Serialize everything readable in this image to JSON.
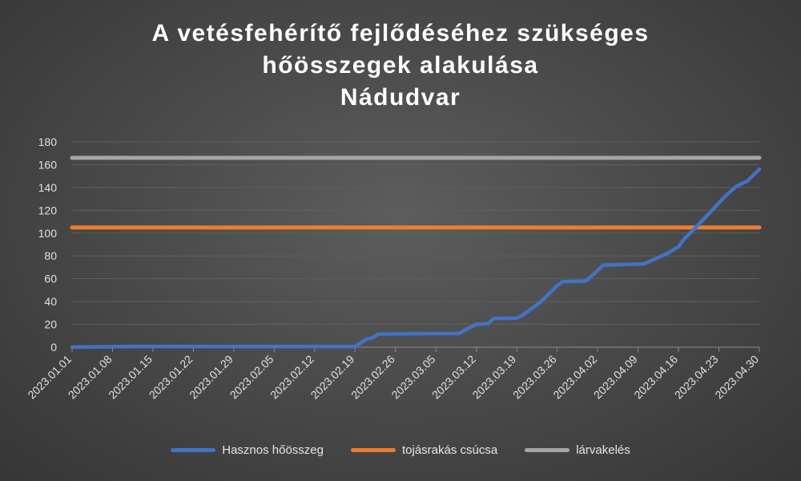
{
  "chart_data": {
    "type": "line",
    "title_lines": [
      "A vetésfehérítő fejlődéséhez szükséges",
      "hőösszegek alakulása",
      "Nádudvar"
    ],
    "xlabel": "",
    "ylabel": "",
    "ylim": [
      0,
      180
    ],
    "y_ticks": [
      0,
      20,
      40,
      60,
      80,
      100,
      120,
      140,
      160,
      180
    ],
    "x_range": [
      "2023.01.01",
      "2023.04.30"
    ],
    "x_tick_labels": [
      "2023.01.01",
      "2023.01.08",
      "2023.01.15",
      "2023.01.22",
      "2023.01.29",
      "2023.02.05",
      "2023.02.12",
      "2023.02.19",
      "2023.02.26",
      "2023.03.05",
      "2023.03.12",
      "2023.03.19",
      "2023.03.26",
      "2023.04.02",
      "2023.04.09",
      "2023.04.16",
      "2023.04.23",
      "2023.04.30"
    ],
    "grid": "horizontal",
    "legend_position": "bottom",
    "series": [
      {
        "name": "Hasznos hőösszeg",
        "color": "#4472c4",
        "points": [
          [
            "2023.01.01",
            0
          ],
          [
            "2023.01.10",
            0.5
          ],
          [
            "2023.02.19",
            0.5
          ],
          [
            "2023.02.21",
            7
          ],
          [
            "2023.02.22",
            8
          ],
          [
            "2023.02.23",
            11.5
          ],
          [
            "2023.03.09",
            12
          ],
          [
            "2023.03.10",
            15
          ],
          [
            "2023.03.12",
            20
          ],
          [
            "2023.03.14",
            20.5
          ],
          [
            "2023.03.15",
            25
          ],
          [
            "2023.03.19",
            25.5
          ],
          [
            "2023.03.20",
            28
          ],
          [
            "2023.03.23",
            39
          ],
          [
            "2023.03.24",
            44
          ],
          [
            "2023.03.26",
            54
          ],
          [
            "2023.03.27",
            57.5
          ],
          [
            "2023.03.31",
            58
          ],
          [
            "2023.04.03",
            72
          ],
          [
            "2023.04.10",
            73
          ],
          [
            "2023.04.14",
            82
          ],
          [
            "2023.04.16",
            88
          ],
          [
            "2023.04.17",
            95
          ],
          [
            "2023.04.19",
            105
          ],
          [
            "2023.04.22",
            121
          ],
          [
            "2023.04.24",
            132
          ],
          [
            "2023.04.26",
            141
          ],
          [
            "2023.04.28",
            146
          ],
          [
            "2023.04.30",
            156
          ]
        ]
      },
      {
        "name": "tojásrakás csúcsa",
        "color": "#ed7d31",
        "points": [
          [
            "2023.01.01",
            105
          ],
          [
            "2023.04.30",
            105
          ]
        ]
      },
      {
        "name": "lárvakelés",
        "color": "#a5a5a5",
        "points": [
          [
            "2023.01.01",
            166
          ],
          [
            "2023.04.30",
            166
          ]
        ]
      }
    ]
  }
}
